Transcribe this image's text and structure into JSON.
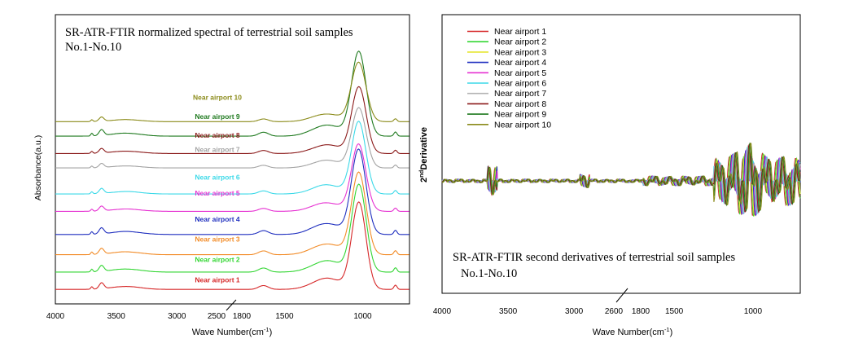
{
  "chart_data": [
    {
      "type": "line",
      "title": "SR-ATR-FTIR normalized spectral of terrestrial soil samples",
      "subtitle": "No.1-No.10",
      "xlabel_main": "Wave Number(cm",
      "xlabel_sup": "-1",
      "xlabel_tail": ")",
      "ylabel": "Absorbance(a.u.)",
      "x_ticks": [
        "4000",
        "3500",
        "3000",
        "2500",
        "1800",
        "1500",
        "1000"
      ],
      "axis_break": "between 2500 and 1800",
      "x_segments": [
        [
          4000,
          2500
        ],
        [
          1800,
          700
        ]
      ],
      "series": [
        {
          "name": "Near airport 1",
          "color": "#d62728",
          "offset": 0.05,
          "scale": 0.8,
          "label_y": 0.075
        },
        {
          "name": "Near airport 2",
          "color": "#33d633",
          "offset": 0.11,
          "scale": 0.82,
          "label_y": 0.145
        },
        {
          "name": "Near airport 3",
          "color": "#f28c28",
          "offset": 0.17,
          "scale": 0.78,
          "label_y": 0.215
        },
        {
          "name": "Near airport 4",
          "color": "#1f2fbf",
          "offset": 0.24,
          "scale": 0.8,
          "label_y": 0.285
        },
        {
          "name": "Near airport 5",
          "color": "#e632d2",
          "offset": 0.32,
          "scale": 0.62,
          "label_y": 0.375
        },
        {
          "name": "Near airport 6",
          "color": "#3cd9e8",
          "offset": 0.38,
          "scale": 0.66,
          "label_y": 0.43
        },
        {
          "name": "Near airport 7",
          "color": "#a3a3a3",
          "offset": 0.47,
          "scale": 0.55,
          "label_y": 0.525
        },
        {
          "name": "Near airport 8",
          "color": "#8b1a1a",
          "offset": 0.52,
          "scale": 0.62,
          "label_y": 0.575
        },
        {
          "name": "Near airport 9",
          "color": "#1f7a1f",
          "offset": 0.58,
          "scale": 0.8,
          "label_y": 0.64
        },
        {
          "name": "Near airport 10",
          "color": "#8b8b1a",
          "offset": 0.63,
          "scale": 0.56,
          "label_y": 0.705
        }
      ]
    },
    {
      "type": "line",
      "title": "SR-ATR-FTIR second derivatives of terrestrial soil samples",
      "subtitle": "No.1-No.10",
      "xlabel_main": "Wave Number(cm",
      "xlabel_sup": "-1",
      "xlabel_tail": ")",
      "ylabel_pre": "2",
      "ylabel_sup": "nd",
      "ylabel_main": "Derivative",
      "x_ticks": [
        "4000",
        "3500",
        "3000",
        "2600",
        "1800",
        "1500",
        "1000"
      ],
      "axis_break": "between 2600 and 1800",
      "x_segments": [
        [
          4000,
          2600
        ],
        [
          1800,
          700
        ]
      ],
      "legend_position": "top-left",
      "legend": [
        {
          "name": "Near airport 1",
          "color": "#d62728"
        },
        {
          "name": "Near airport 2",
          "color": "#33d633"
        },
        {
          "name": "Near airport 3",
          "color": "#e6e62e"
        },
        {
          "name": "Near airport 4",
          "color": "#1f2fbf"
        },
        {
          "name": "Near airport 5",
          "color": "#e632d2"
        },
        {
          "name": "Near airport 6",
          "color": "#3cd9e8"
        },
        {
          "name": "Near airport 7",
          "color": "#b3b3b3"
        },
        {
          "name": "Near airport 8",
          "color": "#8b1a1a"
        },
        {
          "name": "Near airport 9",
          "color": "#1f7a1f"
        },
        {
          "name": "Near airport 10",
          "color": "#8b8b1a"
        }
      ]
    }
  ]
}
